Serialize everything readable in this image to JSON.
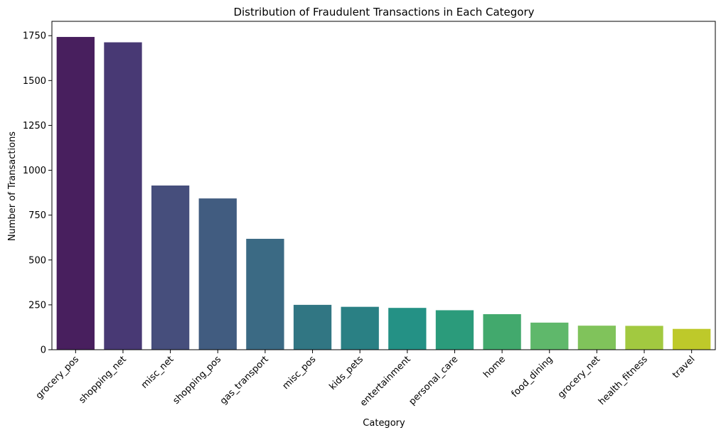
{
  "chart_data": {
    "type": "bar",
    "title": "Distribution of Fraudulent Transactions in Each Category",
    "xlabel": "Category",
    "ylabel": "Number of Transactions",
    "categories": [
      "grocery_pos",
      "shopping_net",
      "misc_net",
      "shopping_pos",
      "gas_transport",
      "misc_pos",
      "kids_pets",
      "entertainment",
      "personal_care",
      "home",
      "food_dining",
      "grocery_net",
      "health_fitness",
      "travel"
    ],
    "values": [
      1743,
      1713,
      915,
      843,
      618,
      250,
      239,
      233,
      220,
      198,
      151,
      134,
      133,
      116
    ],
    "colors": [
      "#481f5e",
      "#483974",
      "#464e7c",
      "#415c80",
      "#3b6a84",
      "#317683",
      "#2a8084",
      "#249185",
      "#2b9b7b",
      "#42a96d",
      "#5fb86b",
      "#80c35b",
      "#a2c940",
      "#bec92a"
    ],
    "yticks": [
      0,
      250,
      500,
      750,
      1000,
      1250,
      1500,
      1750
    ],
    "ylim": [
      0,
      1830
    ],
    "grid": false,
    "legend": "none"
  }
}
